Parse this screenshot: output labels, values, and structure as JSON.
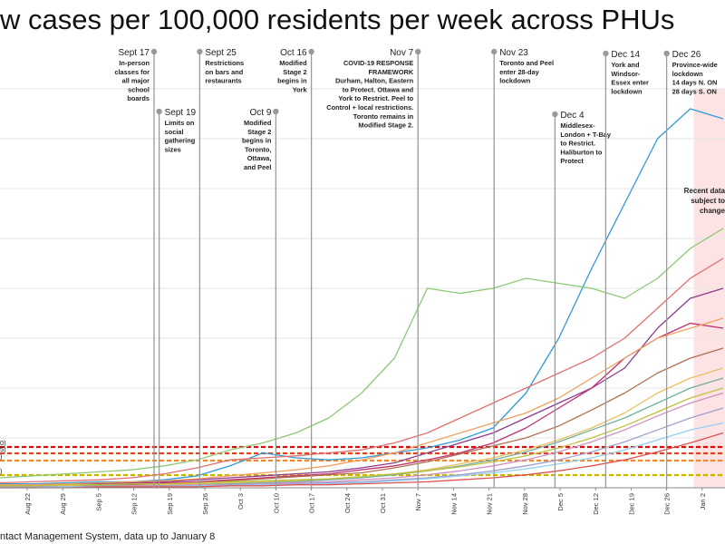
{
  "title": "w cases per 100,000 residents per week across PHUs",
  "source": "ntact Management System, data up to January 8",
  "recent_note": [
    "Recent data",
    "subject to",
    "change"
  ],
  "chart_data": {
    "type": "line",
    "x_ticks": [
      "Aug 22",
      "Aug 29",
      "Sep 5",
      "Sep 12",
      "Sep 19",
      "Sep 26",
      "Oct 3",
      "Oct 10",
      "Oct 17",
      "Oct 24",
      "Oct 31",
      "Nov 7",
      "Nov 14",
      "Nov 21",
      "Nov 28",
      "Dec 5",
      "Dec 12",
      "Dec 19",
      "Dec 26",
      "Jan 2"
    ],
    "threshold_labels": [
      "0)",
      "5)",
      ")",
      ")"
    ],
    "threshold_colors": [
      "#cc1111",
      "#dd4422",
      "#ee8833",
      "#c8b400"
    ],
    "events": [
      {
        "date": "Sep 16",
        "title": "Sept 17",
        "lines": [
          "In-person",
          "classes for",
          "all major",
          "school",
          "boards"
        ],
        "align": "end"
      },
      {
        "date": "Sep 17",
        "title": "Sept 19",
        "lines": [
          "Limits on",
          "social",
          "gathering",
          "sizes"
        ],
        "align": "start"
      },
      {
        "date": "Sep 25",
        "title": "Sept 25",
        "lines": [
          "Restrictions",
          "on bars and",
          "restaurants"
        ],
        "align": "start"
      },
      {
        "date": "Oct 10",
        "title": "Oct 9",
        "lines": [
          "Modified",
          "Stage 2",
          "begins in",
          "Toronto,",
          "Ottawa,",
          "and Peel"
        ],
        "align": "end"
      },
      {
        "date": "Oct 17",
        "title": "Oct 16",
        "lines": [
          "Modified",
          "Stage 2",
          "begins in",
          "York"
        ],
        "align": "end"
      },
      {
        "date": "Nov 7",
        "title": "Nov 7",
        "lines": [
          "COVID-19 RESPONSE",
          "FRAMEWORK",
          "Durham, Halton, Eastern",
          "to Protect. Ottawa and",
          "York to Restrict. Peel to",
          "Control + local restrictions.",
          "Toronto remains in",
          "Modified Stage 2."
        ],
        "align": "end"
      },
      {
        "date": "Nov 22",
        "title": "Nov 23",
        "lines": [
          "Toronto and Peel",
          "enter 28-day",
          "lockdown"
        ],
        "align": "start"
      },
      {
        "date": "Dec 4",
        "title": "Dec 4",
        "lines": [
          "Middlesex-",
          "London + T-Bay",
          "to Restrict.",
          "Haliburton to",
          "Protect"
        ],
        "align": "start"
      },
      {
        "date": "Dec 14",
        "title": "Dec 14",
        "lines": [
          "York and",
          "Windsor-",
          "Essex enter",
          "lockdown"
        ],
        "align": "start"
      },
      {
        "date": "Dec 26",
        "title": "Dec 26",
        "lines": [
          "Province-wide",
          "lockdown",
          "14 days N. ON",
          "28 days S. ON"
        ],
        "align": "start"
      }
    ],
    "series": [
      {
        "color": "#2e9ad6",
        "values": [
          4,
          4,
          5,
          6,
          6,
          8,
          12,
          22,
          35,
          30,
          28,
          30,
          35,
          40,
          48,
          60,
          95,
          150,
          220,
          285,
          350,
          380,
          370
        ]
      },
      {
        "color": "#8fc878",
        "values": [
          10,
          12,
          14,
          16,
          18,
          22,
          28,
          38,
          45,
          55,
          70,
          95,
          130,
          200,
          195,
          200,
          210,
          205,
          200,
          190,
          210,
          240,
          260
        ]
      },
      {
        "color": "#8e3a8e",
        "values": [
          3,
          3,
          4,
          4,
          5,
          6,
          8,
          10,
          12,
          14,
          16,
          20,
          25,
          35,
          45,
          55,
          70,
          85,
          100,
          120,
          160,
          190,
          200
        ]
      },
      {
        "color": "#e07070",
        "values": [
          5,
          6,
          7,
          8,
          10,
          14,
          20,
          28,
          30,
          32,
          35,
          38,
          45,
          55,
          70,
          85,
          100,
          115,
          130,
          150,
          180,
          210,
          230
        ]
      },
      {
        "color": "#c03070",
        "values": [
          2,
          2,
          3,
          3,
          4,
          5,
          6,
          8,
          10,
          12,
          14,
          18,
          22,
          28,
          35,
          45,
          60,
          80,
          100,
          130,
          150,
          165,
          160
        ]
      },
      {
        "color": "#f0a060",
        "values": [
          3,
          3,
          4,
          5,
          6,
          7,
          9,
          12,
          15,
          18,
          22,
          28,
          35,
          45,
          55,
          65,
          75,
          90,
          110,
          130,
          150,
          160,
          170
        ]
      },
      {
        "color": "#b07050",
        "values": [
          2,
          2,
          2,
          3,
          3,
          4,
          5,
          7,
          9,
          11,
          13,
          15,
          20,
          26,
          34,
          42,
          50,
          62,
          78,
          95,
          115,
          130,
          140
        ]
      },
      {
        "color": "#e8c060",
        "values": [
          1,
          1,
          2,
          2,
          2,
          3,
          4,
          5,
          6,
          7,
          9,
          11,
          14,
          18,
          24,
          30,
          38,
          48,
          60,
          75,
          95,
          110,
          120
        ]
      },
      {
        "color": "#70b0a0",
        "values": [
          1,
          1,
          1,
          2,
          2,
          2,
          3,
          4,
          5,
          6,
          8,
          10,
          13,
          17,
          22,
          28,
          36,
          46,
          58,
          70,
          85,
          100,
          110
        ]
      },
      {
        "color": "#d090c0",
        "values": [
          1,
          1,
          1,
          1,
          2,
          2,
          3,
          3,
          4,
          5,
          6,
          8,
          10,
          13,
          17,
          22,
          28,
          36,
          46,
          58,
          72,
          85,
          95
        ]
      },
      {
        "color": "#a0a0d0",
        "values": [
          1,
          1,
          1,
          1,
          1,
          2,
          2,
          3,
          3,
          4,
          5,
          6,
          8,
          10,
          13,
          17,
          22,
          28,
          36,
          46,
          58,
          70,
          80
        ]
      },
      {
        "color": "#c0c040",
        "values": [
          2,
          2,
          3,
          3,
          4,
          4,
          5,
          6,
          7,
          8,
          9,
          11,
          14,
          17,
          21,
          26,
          32,
          40,
          50,
          62,
          76,
          90,
          100
        ]
      },
      {
        "color": "#90d0f0",
        "values": [
          0,
          0,
          1,
          1,
          1,
          1,
          2,
          2,
          3,
          3,
          4,
          5,
          7,
          9,
          12,
          15,
          19,
          24,
          30,
          38,
          48,
          58,
          65
        ]
      },
      {
        "color": "#e05050",
        "values": [
          0,
          0,
          0,
          1,
          1,
          1,
          1,
          2,
          2,
          3,
          3,
          4,
          5,
          6,
          8,
          10,
          13,
          17,
          22,
          28,
          36,
          45,
          55
        ]
      }
    ]
  }
}
